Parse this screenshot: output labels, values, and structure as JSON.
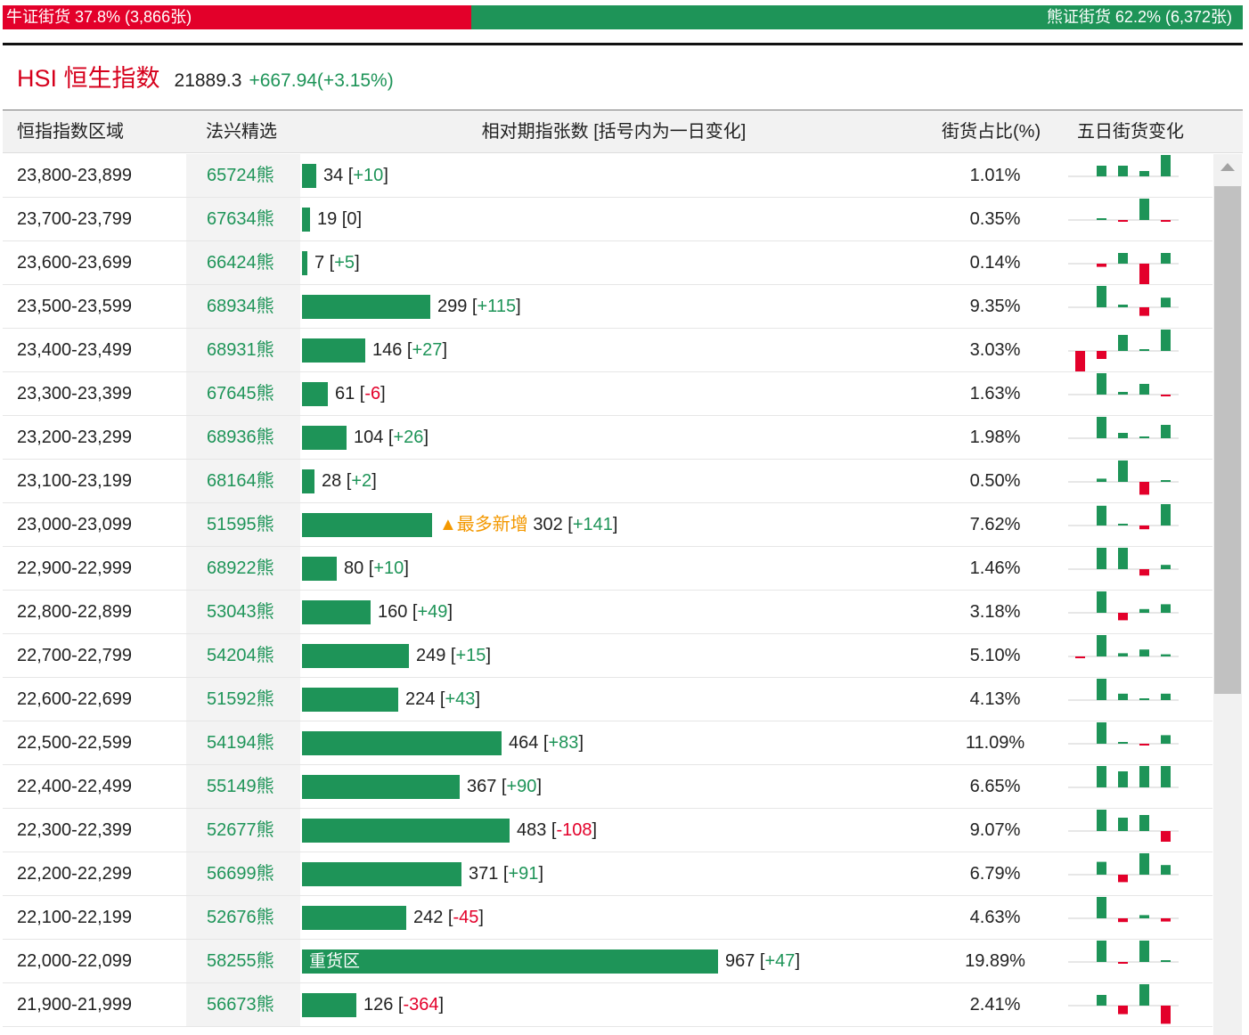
{
  "ratio": {
    "bull_label": "牛证街货 37.8% (3,866张)",
    "bull_fraction": 0.378,
    "bear_label": "熊证街货 62.2% (6,372张)"
  },
  "index": {
    "name": "HSI 恒生指数",
    "value": "21889.3",
    "change": "+667.94(+3.15%)"
  },
  "colors": {
    "up": "#1e9458",
    "down": "#e3002a",
    "tag": "#f39800"
  },
  "headers": {
    "range": "恒指指数区域",
    "pick": "法兴精选",
    "bar": "相对期指张数 [括号内为一日变化]",
    "pct": "街货占比(%)",
    "spark": "五日街货变化"
  },
  "max_count": 967,
  "rows": [
    {
      "range": "23,800-23,899",
      "code": "65724熊",
      "count": "34",
      "delta": "+10",
      "pct": "1.01%",
      "spark": [
        0,
        2,
        2,
        1,
        4
      ]
    },
    {
      "range": "23,700-23,799",
      "code": "67634熊",
      "count": "19",
      "delta": "0",
      "pct": "0.35%",
      "spark": [
        0,
        0.3,
        -0.3,
        4,
        -0.3
      ]
    },
    {
      "range": "23,600-23,699",
      "code": "66424熊",
      "count": "7",
      "delta": "+5",
      "pct": "0.14%",
      "spark": [
        0,
        -0.6,
        2,
        -4,
        2
      ]
    },
    {
      "range": "23,500-23,599",
      "code": "68934熊",
      "count": "299",
      "delta": "+115",
      "pct": "9.35%",
      "spark": [
        0,
        4,
        0.5,
        -1.6,
        1.8
      ]
    },
    {
      "range": "23,400-23,499",
      "code": "68931熊",
      "count": "146",
      "delta": "+27",
      "pct": "3.03%",
      "spark": [
        -4,
        -1.5,
        3,
        0.3,
        4
      ]
    },
    {
      "range": "23,300-23,399",
      "code": "67645熊",
      "count": "61",
      "delta": "-6",
      "pct": "1.63%",
      "spark": [
        0,
        4,
        0.5,
        2,
        -0.3
      ]
    },
    {
      "range": "23,200-23,299",
      "code": "68936熊",
      "count": "104",
      "delta": "+26",
      "pct": "1.98%",
      "spark": [
        0,
        4,
        1,
        0.3,
        2.5
      ]
    },
    {
      "range": "23,100-23,199",
      "code": "68164熊",
      "count": "28",
      "delta": "+2",
      "pct": "0.50%",
      "spark": [
        0,
        0.6,
        4,
        -2.4,
        0.3
      ]
    },
    {
      "range": "23,000-23,099",
      "code": "51595熊",
      "count": "302",
      "delta": "+141",
      "tag": "▲最多新增",
      "pct": "7.62%",
      "spark": [
        0,
        3.7,
        0.3,
        -0.7,
        4
      ]
    },
    {
      "range": "22,900-22,999",
      "code": "68922熊",
      "count": "80",
      "delta": "+10",
      "pct": "1.46%",
      "spark": [
        0,
        4,
        4,
        -1.2,
        0.8
      ]
    },
    {
      "range": "22,800-22,899",
      "code": "53043熊",
      "count": "160",
      "delta": "+49",
      "pct": "3.18%",
      "spark": [
        0,
        4,
        -1.4,
        0.7,
        1.6
      ]
    },
    {
      "range": "22,700-22,799",
      "code": "54204熊",
      "count": "249",
      "delta": "+15",
      "pct": "5.10%",
      "spark": [
        -0.3,
        4,
        0.6,
        1.3,
        0.4
      ]
    },
    {
      "range": "22,600-22,699",
      "code": "51592熊",
      "count": "224",
      "delta": "+43",
      "pct": "4.13%",
      "spark": [
        0,
        4,
        1.2,
        0.3,
        1.2
      ]
    },
    {
      "range": "22,500-22,599",
      "code": "54194熊",
      "count": "464",
      "delta": "+83",
      "pct": "11.09%",
      "spark": [
        0,
        4,
        0.3,
        -0.3,
        1.6
      ]
    },
    {
      "range": "22,400-22,499",
      "code": "55149熊",
      "count": "367",
      "delta": "+90",
      "pct": "6.65%",
      "spark": [
        0,
        4,
        3,
        4,
        4
      ]
    },
    {
      "range": "22,300-22,399",
      "code": "52677熊",
      "count": "483",
      "delta": "-108",
      "pct": "9.07%",
      "spark": [
        0,
        4,
        2.5,
        3,
        -2
      ]
    },
    {
      "range": "22,200-22,299",
      "code": "56699熊",
      "count": "371",
      "delta": "+91",
      "pct": "6.79%",
      "spark": [
        0,
        2.4,
        -1.4,
        4,
        1.8
      ]
    },
    {
      "range": "22,100-22,199",
      "code": "52676熊",
      "count": "242",
      "delta": "-45",
      "pct": "4.63%",
      "spark": [
        0,
        4,
        -0.7,
        0.6,
        -0.6
      ]
    },
    {
      "range": "22,000-22,099",
      "code": "58255熊",
      "count": "967",
      "delta": "+47",
      "bar_text": "重货区",
      "pct": "19.89%",
      "spark": [
        0,
        4,
        -0.3,
        4,
        0.3
      ]
    },
    {
      "range": "21,900-21,999",
      "code": "56673熊",
      "count": "126",
      "delta": "-364",
      "pct": "2.41%",
      "spark": [
        0,
        2,
        -1.6,
        4,
        -3.4
      ]
    }
  ]
}
